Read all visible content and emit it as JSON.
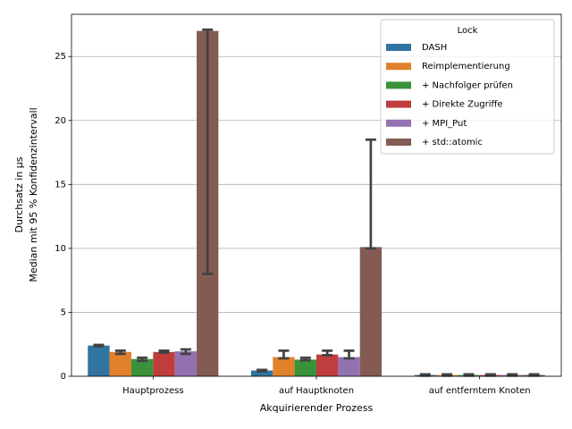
{
  "chart_data": {
    "type": "bar",
    "x_label": "Akquirierender Prozess",
    "y_label": [
      "Durchsatz in µs",
      "Median mit 95 % Konfidenzintervall"
    ],
    "categories": [
      "Hauptprozess",
      "auf Hauptknoten",
      "auf entferntem Knoten"
    ],
    "legend_title": "Lock",
    "legend_position": "upper right",
    "grid": true,
    "ylim": [
      0,
      28.3
    ],
    "yticks": [
      0,
      5,
      10,
      15,
      20,
      25
    ],
    "series": [
      {
        "name": "DASH",
        "color": "#3274a1",
        "values": [
          2.4,
          0.45,
          0.1
        ],
        "ci_low": [
          2.35,
          0.4,
          0.05
        ],
        "ci_high": [
          2.45,
          0.5,
          0.15
        ]
      },
      {
        "name": "Reimplementierung",
        "color": "#e1812c",
        "values": [
          1.9,
          1.5,
          0.1
        ],
        "ci_low": [
          1.75,
          1.4,
          0.05
        ],
        "ci_high": [
          2.0,
          2.0,
          0.15
        ]
      },
      {
        "name": "+ Nachfolger prüfen",
        "color": "#3a923a",
        "values": [
          1.35,
          1.3,
          0.1
        ],
        "ci_low": [
          1.2,
          1.25,
          0.05
        ],
        "ci_high": [
          1.45,
          1.45,
          0.15
        ]
      },
      {
        "name": "+ Direkte Zugriffe",
        "color": "#c03d3e",
        "values": [
          1.9,
          1.7,
          0.1
        ],
        "ci_low": [
          1.85,
          1.65,
          0.05
        ],
        "ci_high": [
          2.0,
          2.0,
          0.15
        ]
      },
      {
        "name": "+ MPI_Put",
        "color": "#9372b2",
        "values": [
          1.95,
          1.5,
          0.1
        ],
        "ci_low": [
          1.75,
          1.4,
          0.05
        ],
        "ci_high": [
          2.1,
          2.0,
          0.15
        ]
      },
      {
        "name": "+ std::atomic",
        "color": "#845b53",
        "values": [
          27.0,
          10.1,
          0.1
        ],
        "ci_low": [
          8.0,
          10.0,
          0.05
        ],
        "ci_high": [
          27.1,
          18.5,
          0.15
        ]
      }
    ]
  }
}
